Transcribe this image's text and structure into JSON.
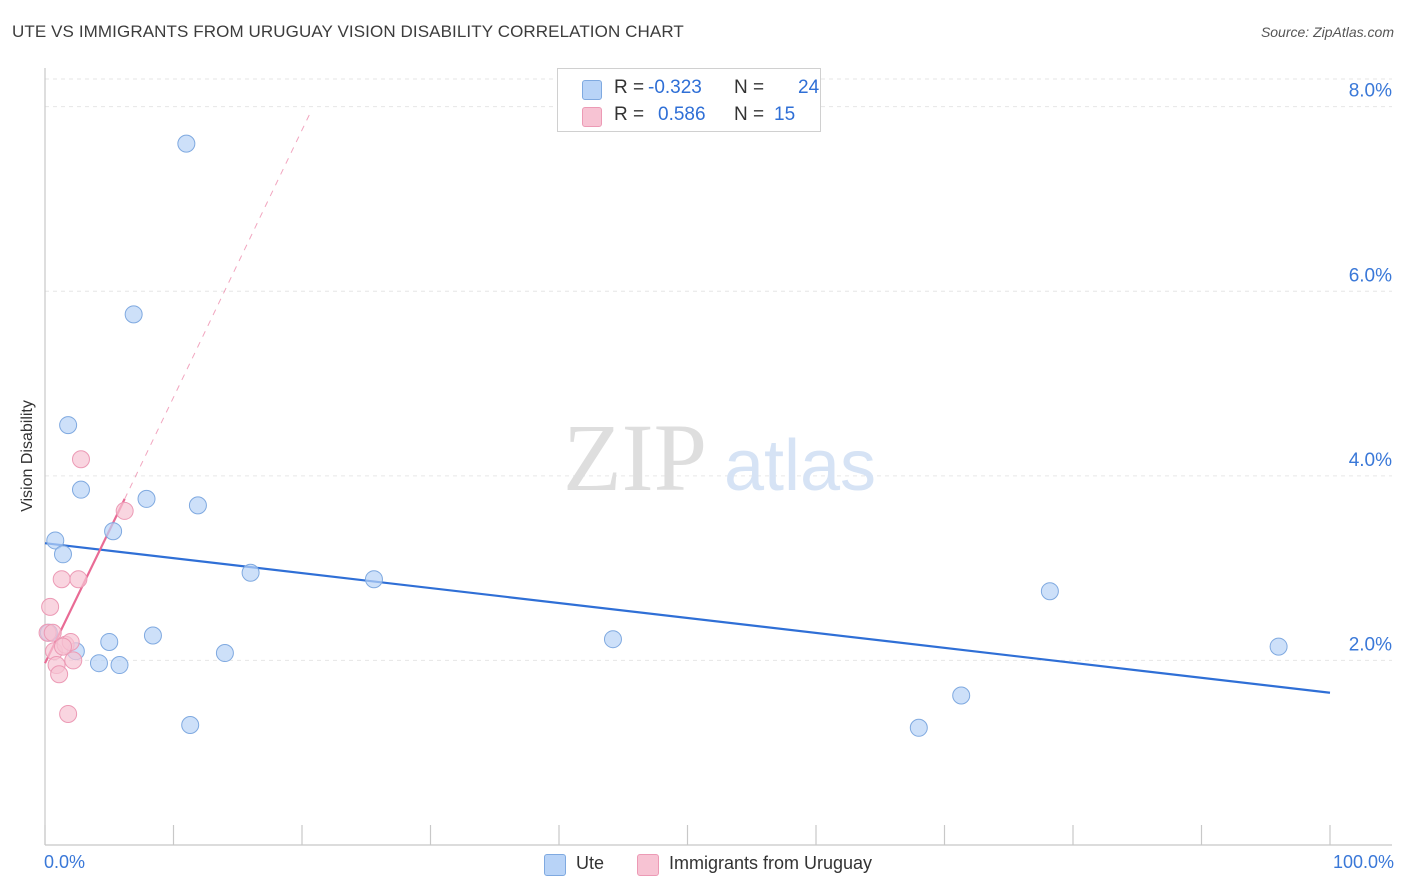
{
  "title": "UTE VS IMMIGRANTS FROM URUGUAY VISION DISABILITY CORRELATION CHART",
  "source": "Source: ZipAtlas.com",
  "watermark": {
    "zip": "ZIP",
    "atlas": "atlas"
  },
  "legend": {
    "rows": [
      {
        "r_label": "R =",
        "r_value": "-0.323",
        "n_label": "N =",
        "n_value": "24",
        "color": "#b8d3f7"
      },
      {
        "r_label": "R =",
        "r_value": "0.586",
        "n_label": "N =",
        "n_value": "15",
        "color": "#f7c3d3"
      }
    ]
  },
  "chart_data": {
    "type": "scatter",
    "xlabel": "",
    "ylabel": "Vision Disability",
    "xlim": [
      0,
      100
    ],
    "ylim": [
      0,
      8.3
    ],
    "x_tick_labels": {
      "min": "0.0%",
      "max": "100.0%"
    },
    "y_ticks": [
      {
        "value": 2,
        "label": "2.0%"
      },
      {
        "value": 4,
        "label": "4.0%"
      },
      {
        "value": 6,
        "label": "6.0%"
      },
      {
        "value": 8,
        "label": "8.0%"
      }
    ],
    "grid": true,
    "series": [
      {
        "name": "Ute",
        "color": "#b8d3f7",
        "edge": "#7fa9e0",
        "line_color": "#2f6fd6",
        "points": [
          {
            "x": 0.3,
            "y": 2.3
          },
          {
            "x": 0.8,
            "y": 3.3
          },
          {
            "x": 1.4,
            "y": 3.15
          },
          {
            "x": 1.8,
            "y": 4.55
          },
          {
            "x": 2.4,
            "y": 2.1
          },
          {
            "x": 2.8,
            "y": 3.85
          },
          {
            "x": 4.2,
            "y": 1.97
          },
          {
            "x": 5.0,
            "y": 2.2
          },
          {
            "x": 5.3,
            "y": 3.4
          },
          {
            "x": 5.8,
            "y": 1.95
          },
          {
            "x": 6.9,
            "y": 5.75
          },
          {
            "x": 7.9,
            "y": 3.75
          },
          {
            "x": 8.4,
            "y": 2.27
          },
          {
            "x": 11.0,
            "y": 7.6
          },
          {
            "x": 11.3,
            "y": 1.3
          },
          {
            "x": 11.9,
            "y": 3.68
          },
          {
            "x": 14.0,
            "y": 2.08
          },
          {
            "x": 16.0,
            "y": 2.95
          },
          {
            "x": 25.6,
            "y": 2.88
          },
          {
            "x": 44.2,
            "y": 2.23
          },
          {
            "x": 68.0,
            "y": 1.27
          },
          {
            "x": 71.3,
            "y": 1.62
          },
          {
            "x": 78.2,
            "y": 2.75
          },
          {
            "x": 96.0,
            "y": 2.15
          }
        ],
        "trend": {
          "x0": 0.0,
          "y0": 3.27,
          "x1": 100.0,
          "y1": 1.65
        }
      },
      {
        "name": "Immigrants from Uruguay",
        "color": "#f7c3d3",
        "edge": "#ec9ab5",
        "line_color": "#e96b95",
        "points": [
          {
            "x": 0.2,
            "y": 2.3
          },
          {
            "x": 0.4,
            "y": 2.58
          },
          {
            "x": 0.7,
            "y": 2.1
          },
          {
            "x": 0.9,
            "y": 1.95
          },
          {
            "x": 1.1,
            "y": 1.85
          },
          {
            "x": 1.3,
            "y": 2.88
          },
          {
            "x": 1.6,
            "y": 2.17
          },
          {
            "x": 1.8,
            "y": 1.42
          },
          {
            "x": 2.0,
            "y": 2.2
          },
          {
            "x": 2.2,
            "y": 2.0
          },
          {
            "x": 2.6,
            "y": 2.88
          },
          {
            "x": 2.8,
            "y": 4.18
          },
          {
            "x": 6.2,
            "y": 3.62
          },
          {
            "x": 0.6,
            "y": 2.3
          },
          {
            "x": 1.4,
            "y": 2.15
          }
        ],
        "trend": {
          "x0": 0.0,
          "y0": 1.97,
          "x1": 6.2,
          "y1": 3.75
        },
        "trend_ext": {
          "x0": 6.2,
          "y0": 3.75,
          "x1": 20.7,
          "y1": 7.95
        }
      }
    ]
  }
}
